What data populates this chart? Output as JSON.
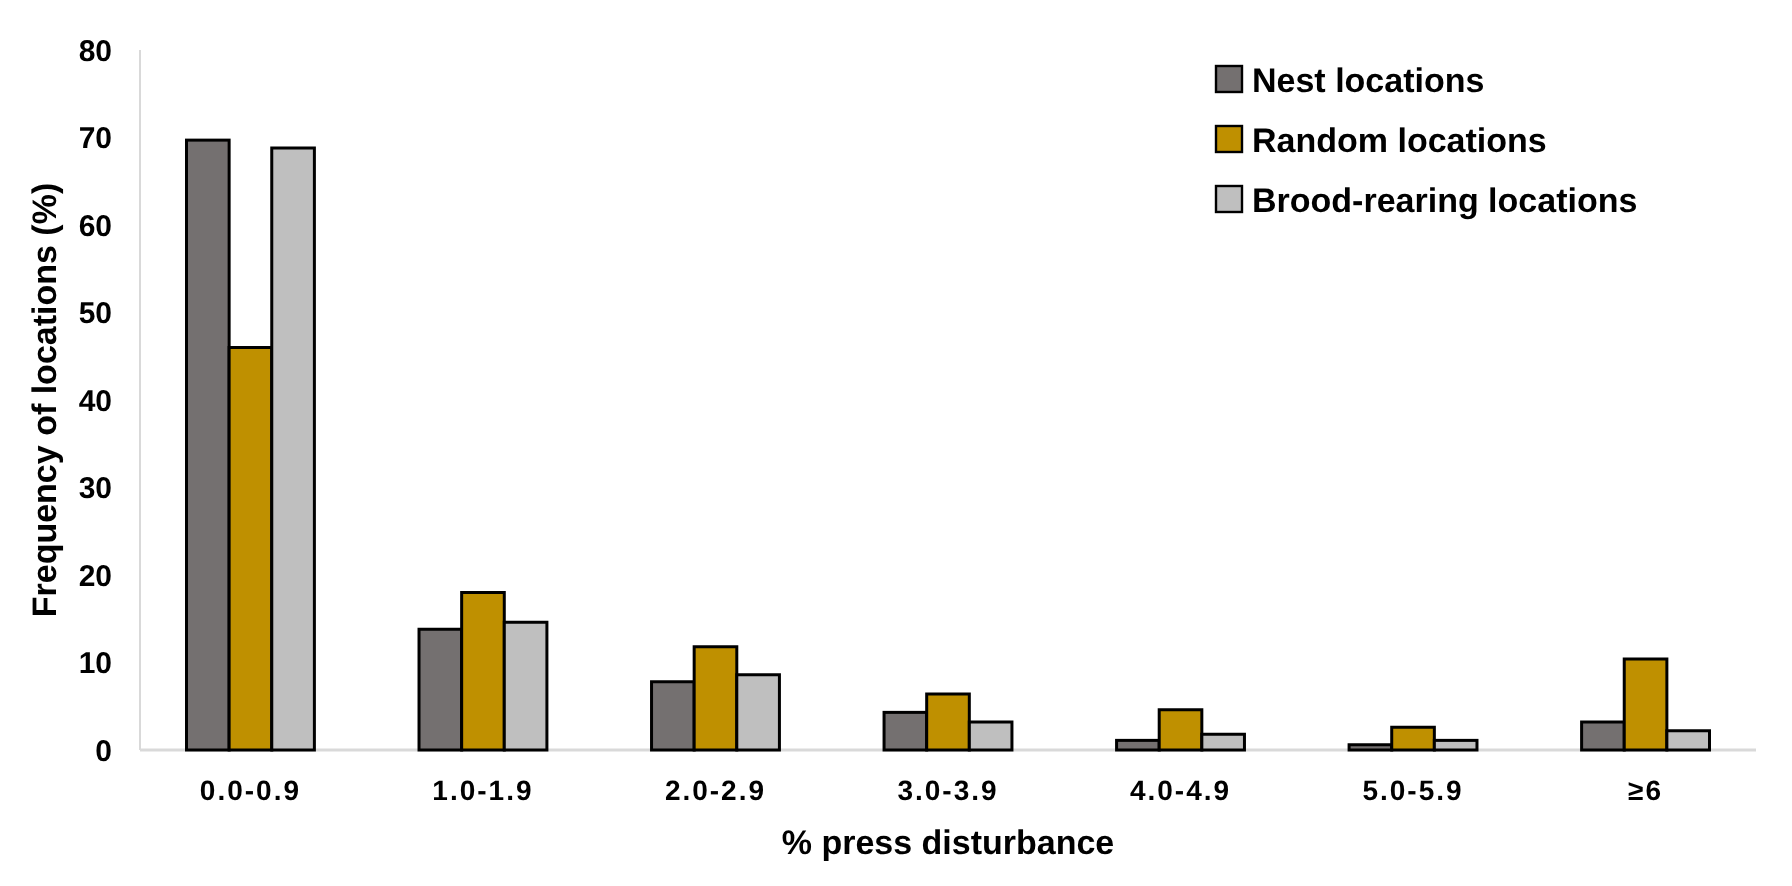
{
  "chart_data": {
    "type": "bar",
    "xlabel": "% press disturbance",
    "ylabel": "Frequency of locations (%)",
    "categories": [
      "0.0-0.9",
      "1.0-1.9",
      "2.0-2.9",
      "3.0-3.9",
      "4.0-4.9",
      "5.0-5.9",
      "≥6"
    ],
    "series": [
      {
        "name": "Nest locations",
        "color": "#747070",
        "values": [
          69.7,
          13.8,
          7.8,
          4.3,
          1.1,
          0.6,
          3.2
        ]
      },
      {
        "name": "Random locations",
        "color": "#bf9000",
        "values": [
          46,
          18,
          11.8,
          6.4,
          4.6,
          2.6,
          10.4
        ]
      },
      {
        "name": "Brood-rearing locations",
        "color": "#bfbfbf",
        "values": [
          68.8,
          14.6,
          8.6,
          3.2,
          1.8,
          1.1,
          2.2
        ]
      }
    ],
    "ylim": [
      0,
      80
    ],
    "yticks": [
      0,
      10,
      20,
      30,
      40,
      50,
      60,
      70,
      80
    ],
    "grid": false,
    "legend": "top right"
  }
}
